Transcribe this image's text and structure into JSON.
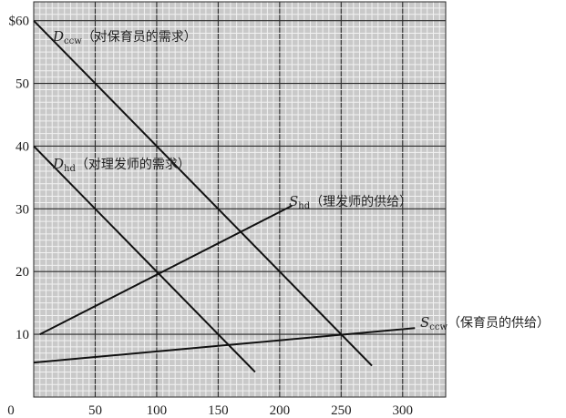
{
  "chart_data": {
    "type": "line",
    "x_ticks": [
      "0",
      "50",
      "100",
      "150",
      "200",
      "250",
      "300"
    ],
    "y_ticks": [
      "$60",
      "50",
      "40",
      "30",
      "20",
      "10"
    ],
    "xlim": [
      0,
      335
    ],
    "ylim": [
      0,
      63
    ],
    "grid": true,
    "series": [
      {
        "name": "Dccw（对保育员的需求）",
        "label_main": "D",
        "label_sub": "ccw",
        "label_text": "（对保育员的需求）",
        "x": [
          0,
          275
        ],
        "y": [
          60,
          5
        ]
      },
      {
        "name": "Dhd（对理发师的需求）",
        "label_main": "D",
        "label_sub": "hd",
        "label_text": "（对理发师的需求）",
        "x": [
          0,
          180
        ],
        "y": [
          40,
          4
        ]
      },
      {
        "name": "Shd（理发师的供给）",
        "label_main": "S",
        "label_sub": "hd",
        "label_text": "（理发师的供给）",
        "x": [
          5,
          210
        ],
        "y": [
          10,
          30.5
        ]
      },
      {
        "name": "Sccw（保育员的供给）",
        "label_main": "S",
        "label_sub": "ccw",
        "label_text": "（保育员的供给）",
        "x": [
          0,
          310
        ],
        "y": [
          5.5,
          11
        ]
      }
    ]
  }
}
